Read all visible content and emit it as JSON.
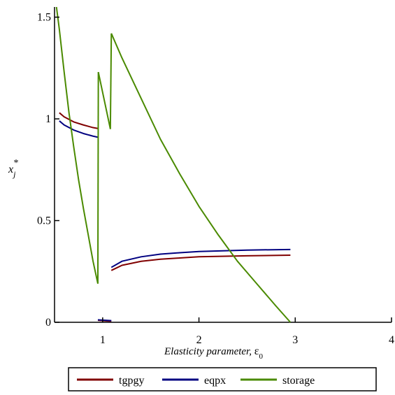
{
  "chart_data": {
    "type": "line",
    "xlabel_italic": "Elasticity parameter,",
    "xlabel_symbol": "ε",
    "xlabel_subscript": "0",
    "ylabel_main": "x",
    "ylabel_subscript": "j",
    "ylabel_superscript": "*",
    "xlim": [
      0.5,
      4
    ],
    "ylim": [
      0,
      1.55
    ],
    "x_ticks": [
      1,
      2,
      3,
      4
    ],
    "x_tick_labels": [
      "1",
      "2",
      "3",
      "4"
    ],
    "y_ticks": [
      0,
      0.5,
      1,
      1.5
    ],
    "y_tick_labels": [
      "0",
      "0.5",
      "1",
      "1.5"
    ],
    "grid": false,
    "legend_position": "bottom",
    "series": [
      {
        "name": "tgpgy",
        "color": "#800000",
        "segments": [
          [
            [
              0.55,
              1.03
            ],
            [
              0.6,
              1.01
            ],
            [
              0.7,
              0.985
            ],
            [
              0.8,
              0.97
            ],
            [
              0.9,
              0.957
            ],
            [
              0.95,
              0.953
            ]
          ],
          [
            [
              0.95,
              0.01
            ],
            [
              1.09,
              0.005
            ]
          ],
          [
            [
              1.09,
              0.255
            ],
            [
              1.2,
              0.28
            ],
            [
              1.4,
              0.3
            ],
            [
              1.6,
              0.31
            ],
            [
              1.8,
              0.316
            ],
            [
              2.0,
              0.322
            ],
            [
              2.5,
              0.327
            ],
            [
              2.95,
              0.33
            ]
          ]
        ]
      },
      {
        "name": "eqpx",
        "color": "#000080",
        "segments": [
          [
            [
              0.55,
              0.99
            ],
            [
              0.6,
              0.97
            ],
            [
              0.7,
              0.945
            ],
            [
              0.8,
              0.928
            ],
            [
              0.9,
              0.915
            ],
            [
              0.95,
              0.91
            ]
          ],
          [
            [
              0.95,
              0.012
            ],
            [
              1.09,
              0.008
            ]
          ],
          [
            [
              1.09,
              0.27
            ],
            [
              1.2,
              0.3
            ],
            [
              1.4,
              0.322
            ],
            [
              1.6,
              0.335
            ],
            [
              1.8,
              0.342
            ],
            [
              2.0,
              0.348
            ],
            [
              2.5,
              0.355
            ],
            [
              2.95,
              0.358
            ]
          ]
        ]
      },
      {
        "name": "storage",
        "color": "#4a8a00",
        "segments": [
          [
            [
              0.52,
              1.55
            ],
            [
              0.55,
              1.44
            ],
            [
              0.6,
              1.23
            ],
            [
              0.65,
              1.03
            ],
            [
              0.7,
              0.86
            ],
            [
              0.75,
              0.7
            ],
            [
              0.8,
              0.56
            ],
            [
              0.85,
              0.43
            ],
            [
              0.9,
              0.3
            ],
            [
              0.95,
              0.19
            ]
          ],
          [
            [
              0.95,
              0.19
            ],
            [
              0.955,
              1.23
            ]
          ],
          [
            [
              0.955,
              1.23
            ],
            [
              1.08,
              0.95
            ]
          ],
          [
            [
              1.08,
              0.95
            ],
            [
              1.09,
              1.42
            ]
          ],
          [
            [
              1.09,
              1.42
            ],
            [
              1.2,
              1.3
            ],
            [
              1.4,
              1.1
            ],
            [
              1.6,
              0.9
            ],
            [
              1.8,
              0.73
            ],
            [
              2.0,
              0.57
            ],
            [
              2.2,
              0.43
            ],
            [
              2.4,
              0.3
            ],
            [
              2.6,
              0.19
            ],
            [
              2.8,
              0.08
            ],
            [
              2.95,
              0.0
            ]
          ]
        ]
      }
    ]
  }
}
